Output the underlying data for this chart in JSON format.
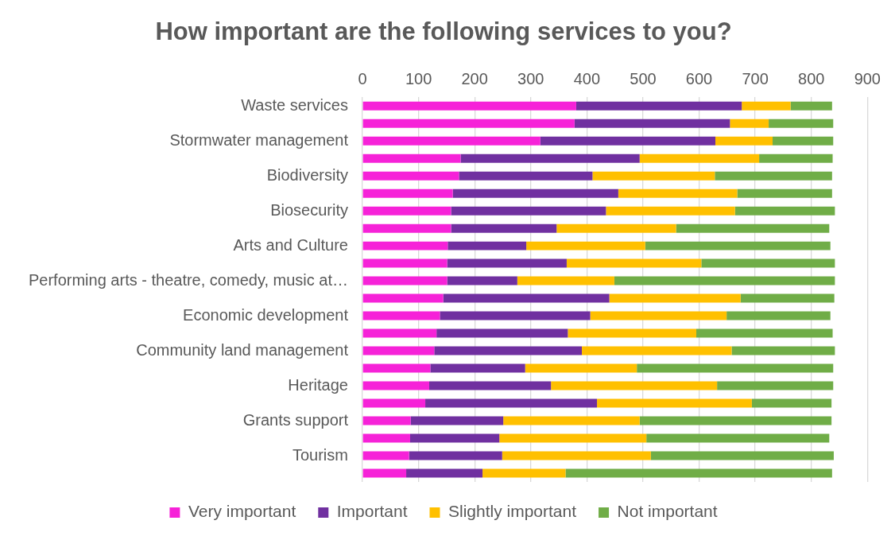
{
  "chart_data": {
    "type": "bar",
    "orientation": "horizontal",
    "stacked": true,
    "title": "How important are the following services to you?",
    "categories": [
      "Waste services",
      null,
      "Stormwater management",
      null,
      "Biodiversity",
      null,
      "Biosecurity",
      null,
      "Arts and Culture",
      null,
      "Performing arts - theatre, comedy, music at…",
      null,
      "Economic development",
      null,
      "Community land management",
      null,
      "Heritage",
      null,
      "Grants support",
      null,
      "Tourism",
      null
    ],
    "series": [
      {
        "name": "Very important",
        "color": "#f622d8",
        "values": [
          381,
          378,
          317,
          175,
          172,
          161,
          158,
          158,
          152,
          151,
          151,
          144,
          138,
          132,
          128,
          121,
          119,
          112,
          86,
          85,
          83,
          78
        ]
      },
      {
        "name": "Important",
        "color": "#7030a0",
        "values": [
          295,
          277,
          312,
          319,
          238,
          295,
          276,
          188,
          140,
          213,
          125,
          296,
          268,
          234,
          263,
          169,
          217,
          306,
          165,
          159,
          166,
          136
        ]
      },
      {
        "name": "Slightly important",
        "color": "#ffc000",
        "values": [
          87,
          69,
          102,
          213,
          218,
          212,
          230,
          213,
          212,
          240,
          173,
          234,
          243,
          229,
          267,
          199,
          296,
          276,
          243,
          262,
          265,
          148
        ]
      },
      {
        "name": "Not important",
        "color": "#70ad47",
        "values": [
          74,
          115,
          108,
          131,
          209,
          169,
          178,
          273,
          330,
          238,
          393,
          167,
          185,
          243,
          184,
          350,
          207,
          142,
          342,
          326,
          326,
          475
        ]
      }
    ],
    "xlim": [
      0,
      900
    ],
    "xticks": [
      0,
      100,
      200,
      300,
      400,
      500,
      600,
      700,
      800,
      900
    ],
    "grid": "x",
    "legend": "bottom"
  }
}
